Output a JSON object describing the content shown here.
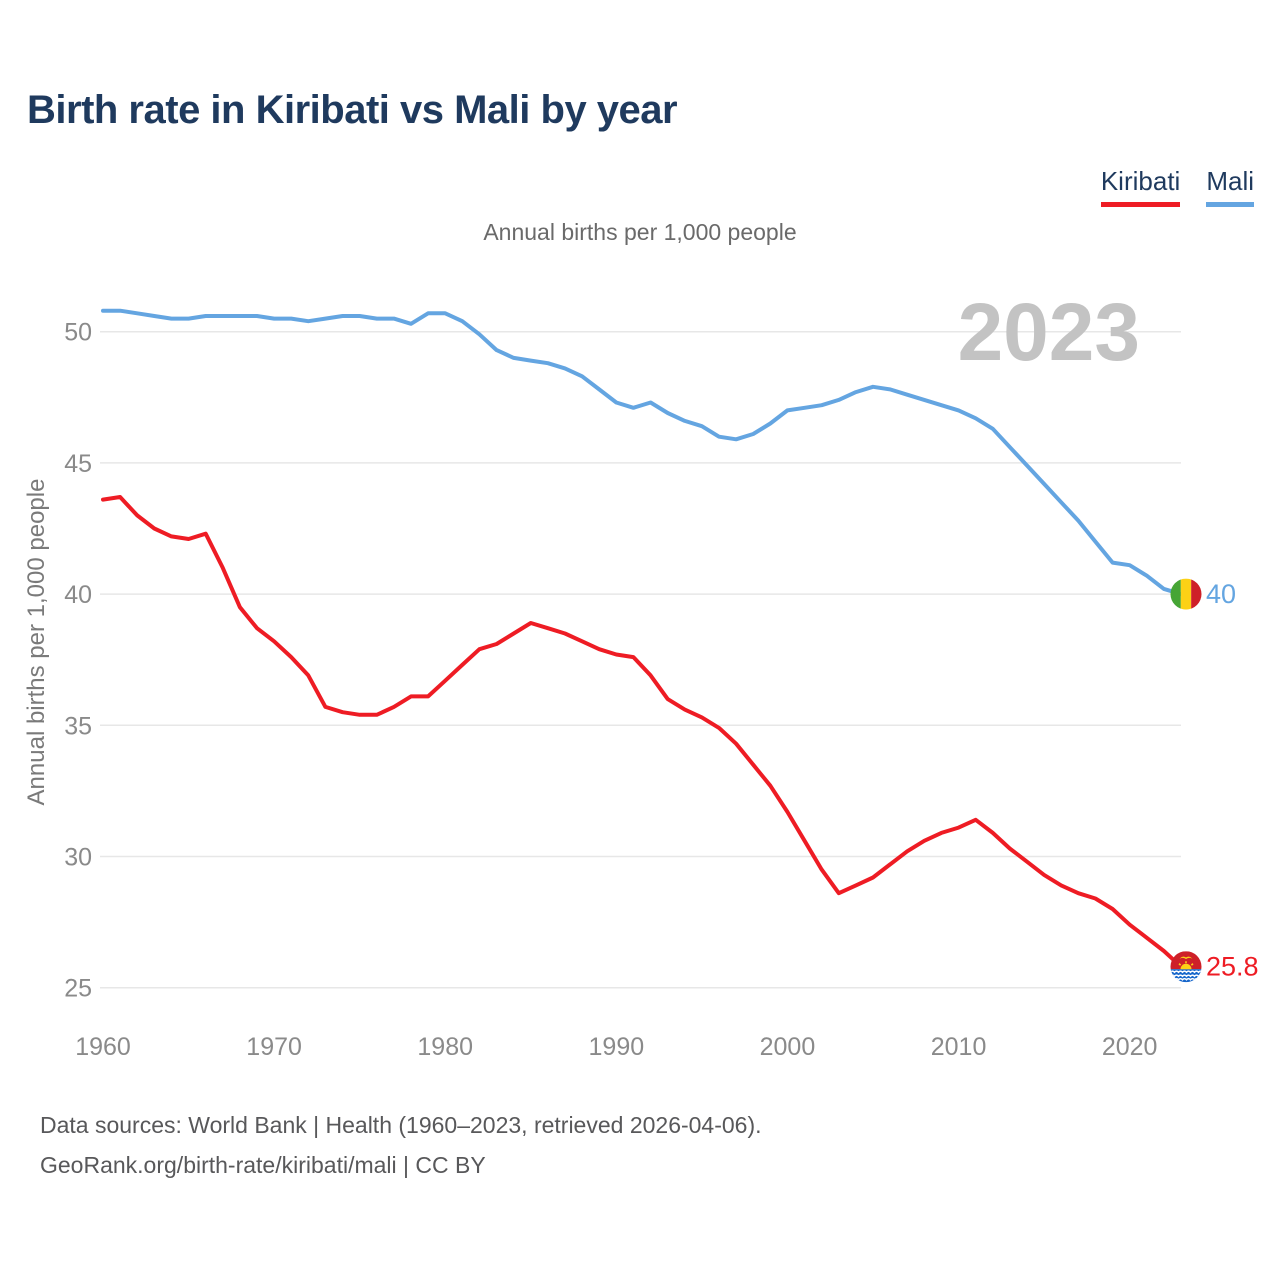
{
  "title": "Birth rate in Kiribati vs Mali by year",
  "subtitle": "Annual births per 1,000 people",
  "watermark": "2023",
  "legend": {
    "items": [
      {
        "label": "Kiribati",
        "color": "#ee1c24"
      },
      {
        "label": "Mali",
        "color": "#64a5e1"
      }
    ]
  },
  "y_axis": {
    "title": "Annual births per 1,000 people",
    "ticks": [
      50,
      45,
      40,
      35,
      30,
      25
    ]
  },
  "x_axis": {
    "ticks": [
      1960,
      1970,
      1980,
      1990,
      2000,
      2010,
      2020
    ]
  },
  "end_labels": {
    "mali": {
      "series": "Mali",
      "value": "40",
      "color": "#64a5e1",
      "flag": "mali-flag"
    },
    "kiribati": {
      "series": "Kiribati",
      "value": "25.8",
      "color": "#ee1c24",
      "flag": "kiribati-flag"
    }
  },
  "footer": {
    "line1": "Data sources: World Bank | Health (1960–2023, retrieved 2026-04-06).",
    "line2": "GeoRank.org/birth-rate/kiribati/mali | CC BY"
  },
  "colors": {
    "kiribati_line": "#ee1c24",
    "mali_line": "#64a5e1",
    "gridline": "#e7e7e7",
    "tick_text": "#8a8a8a",
    "axis_title_text": "#7a7a7a",
    "watermark_text": "#c3c3c3",
    "title_text": "#1f3a5e"
  },
  "chart_data": {
    "type": "line",
    "title": "Birth rate in Kiribati vs Mali by year",
    "subtitle": "Annual births per 1,000 people",
    "ylabel": "Annual births per 1,000 people",
    "xlabel": "",
    "xlim": [
      1960,
      2023
    ],
    "ylim": [
      24.5,
      51.5
    ],
    "grid": true,
    "legend_position": "top-right",
    "x": [
      1960,
      1961,
      1962,
      1963,
      1964,
      1965,
      1966,
      1967,
      1968,
      1969,
      1970,
      1971,
      1972,
      1973,
      1974,
      1975,
      1976,
      1977,
      1978,
      1979,
      1980,
      1981,
      1982,
      1983,
      1984,
      1985,
      1986,
      1987,
      1988,
      1989,
      1990,
      1991,
      1992,
      1993,
      1994,
      1995,
      1996,
      1997,
      1998,
      1999,
      2000,
      2001,
      2002,
      2003,
      2004,
      2005,
      2006,
      2007,
      2008,
      2009,
      2010,
      2011,
      2012,
      2013,
      2014,
      2015,
      2016,
      2017,
      2018,
      2019,
      2020,
      2021,
      2022,
      2023
    ],
    "series": [
      {
        "name": "Kiribati",
        "color": "#ee1c24",
        "end_value_label": "25.8",
        "values": [
          43.6,
          43.7,
          43.0,
          42.5,
          42.2,
          42.1,
          42.3,
          41.0,
          39.5,
          38.7,
          38.2,
          37.6,
          36.9,
          35.7,
          35.5,
          35.4,
          35.4,
          35.7,
          36.1,
          36.1,
          36.7,
          37.3,
          37.9,
          38.1,
          38.5,
          38.9,
          38.7,
          38.5,
          38.2,
          37.9,
          37.7,
          37.6,
          36.9,
          36.0,
          35.6,
          35.3,
          34.9,
          34.3,
          33.5,
          32.7,
          31.7,
          30.6,
          29.5,
          28.6,
          28.9,
          29.2,
          29.7,
          30.2,
          30.6,
          30.9,
          31.1,
          31.4,
          30.9,
          30.3,
          29.8,
          29.3,
          28.9,
          28.6,
          28.4,
          28.0,
          27.4,
          26.9,
          26.4,
          25.8
        ]
      },
      {
        "name": "Mali",
        "color": "#64a5e1",
        "end_value_label": "40",
        "values": [
          50.8,
          50.8,
          50.7,
          50.6,
          50.5,
          50.5,
          50.6,
          50.6,
          50.6,
          50.6,
          50.5,
          50.5,
          50.4,
          50.5,
          50.6,
          50.6,
          50.5,
          50.5,
          50.3,
          50.7,
          50.7,
          50.4,
          49.9,
          49.3,
          49.0,
          48.9,
          48.8,
          48.6,
          48.3,
          47.8,
          47.3,
          47.1,
          47.3,
          46.9,
          46.6,
          46.4,
          46.0,
          45.9,
          46.1,
          46.5,
          47.0,
          47.1,
          47.2,
          47.4,
          47.7,
          47.9,
          47.8,
          47.6,
          47.4,
          47.2,
          47.0,
          46.7,
          46.3,
          45.6,
          44.9,
          44.2,
          43.5,
          42.8,
          42.0,
          41.2,
          41.1,
          40.7,
          40.2,
          40.0
        ]
      }
    ]
  }
}
